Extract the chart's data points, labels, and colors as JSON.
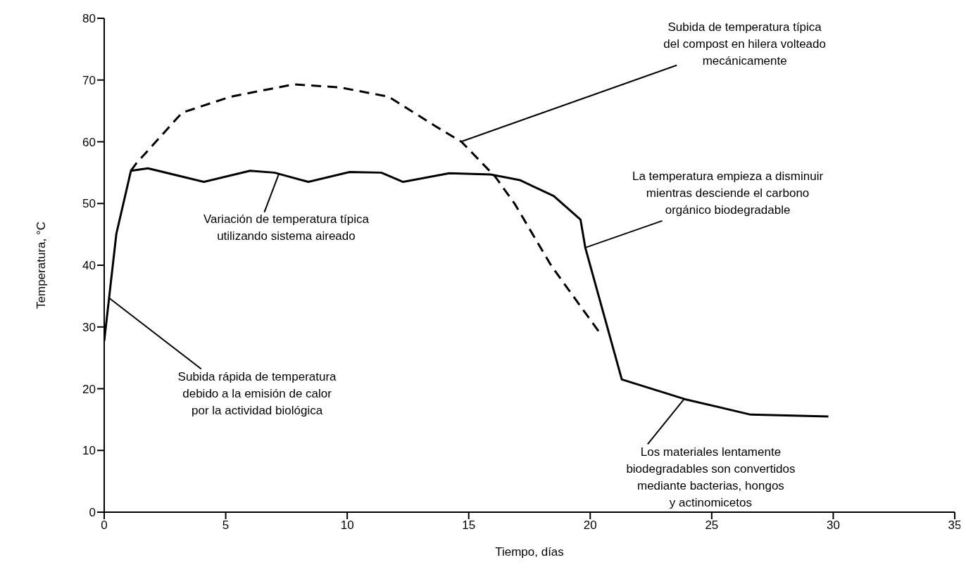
{
  "chart_data": {
    "type": "line",
    "xlabel": "Tiempo, días",
    "ylabel": "Temperatura, °C",
    "xlim": [
      0,
      35
    ],
    "xticks": [
      0,
      5,
      10,
      15,
      20,
      25,
      30,
      35
    ],
    "ylim": [
      0,
      80
    ],
    "yticks": [
      0,
      10,
      20,
      30,
      40,
      50,
      60,
      70,
      80
    ],
    "grid": false,
    "marker": "none",
    "series": [
      {
        "color": "#000000",
        "line_style": "solid",
        "x": [
          0,
          0.5,
          1.1,
          1.8,
          4.1,
          6.0,
          7.0,
          8.4,
          10.1,
          11.4,
          12.3,
          14.2,
          15.9,
          17.1,
          18.5,
          19.6,
          19.8,
          21.3,
          23.9,
          26.6,
          29.8
        ],
        "values": [
          27.7,
          45.1,
          55.3,
          55.7,
          53.5,
          55.3,
          55.0,
          53.5,
          55.1,
          55.0,
          53.5,
          54.9,
          54.7,
          53.8,
          51.2,
          47.4,
          42.8,
          21.5,
          18.3,
          15.8,
          15.5
        ]
      },
      {
        "color": "#000000",
        "line_style": "dashed",
        "x": [
          1.1,
          1.3,
          3.2,
          5.2,
          7.8,
          9.7,
          11.7,
          13.6,
          14.7,
          16.1,
          16.9,
          18.4,
          20.4
        ],
        "values": [
          55.3,
          56.4,
          64.7,
          67.3,
          69.3,
          68.8,
          67.3,
          62.6,
          60.0,
          54.3,
          49.9,
          39.9,
          29.0
        ]
      }
    ],
    "annotations": [
      {
        "text": "Subida de temperatura típica\ndel compost en hilera volteado\nmecánicamente",
        "x": 14.7,
        "y": 60.0
      },
      {
        "text": "La temperatura empieza a disminuir\nmientras desciende el carbono\norgánico biodegradable",
        "x": 19.8,
        "y": 42.8
      },
      {
        "text": "Variación de temperatura típica\nutilizando sistema aireado",
        "x": 7.2,
        "y": 54.8
      },
      {
        "text": "Subida rápida de temperatura\ndebido a la emisión de calor\npor la actividad biológica",
        "x": 0.2,
        "y": 34.7
      },
      {
        "text": "Los materiales lentamente\nbiodegradables son convertidos\nmediante bacterias, hongos\ny actinomicetos",
        "x": 23.9,
        "y": 18.3
      }
    ]
  }
}
